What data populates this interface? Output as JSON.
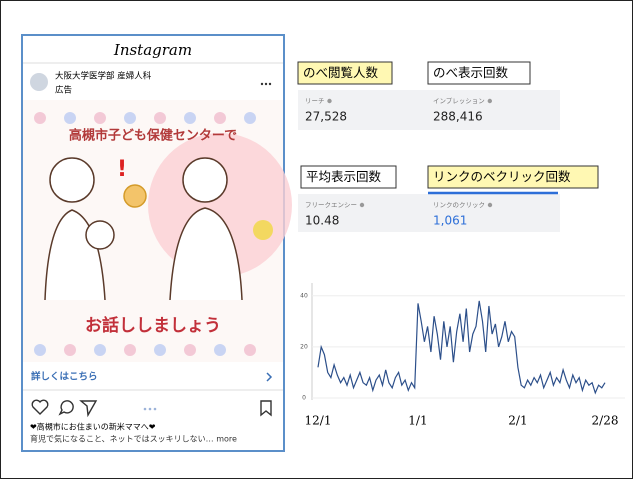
{
  "post": {
    "app": "Instagram",
    "account": "大阪大学医学部 産婦人科",
    "sponsored": "広告",
    "headline": "高槻市子ども保健センターで",
    "tagline": "お話ししましょう",
    "cta": "詳しくはこちら",
    "caption": [
      "❤高槻市にお住まいの新米ママへ❤",
      "育児で気になること、ネットではスッキリしない… more"
    ]
  },
  "metrics": [
    {
      "title": "のべ閲覧人数",
      "label": "リーチ",
      "value": "27,528"
    },
    {
      "title": "のべ表示回数",
      "label": "インプレッション",
      "value": "288,416"
    },
    {
      "title": "平均表示回数",
      "label": "フリークエンシー",
      "value": "10.48"
    },
    {
      "title": "リンクのベクリック回数",
      "label": "リンクのクリック",
      "value": "1,061"
    }
  ],
  "chart_data": {
    "type": "line",
    "categories": [
      "12/1",
      null,
      null,
      null,
      null,
      null,
      null,
      null,
      null,
      null,
      null,
      null,
      null,
      null,
      null,
      null,
      null,
      null,
      null,
      null,
      null,
      null,
      null,
      null,
      null,
      null,
      null,
      null,
      null,
      null,
      null,
      "1/1",
      null,
      null,
      null,
      null,
      null,
      null,
      null,
      null,
      null,
      null,
      null,
      null,
      null,
      null,
      null,
      null,
      null,
      null,
      null,
      null,
      null,
      null,
      null,
      null,
      null,
      null,
      null,
      null,
      null,
      null,
      "2/1",
      null,
      null,
      null,
      null,
      null,
      null,
      null,
      null,
      null,
      null,
      null,
      null,
      null,
      null,
      null,
      null,
      null,
      null,
      null,
      null,
      null,
      null,
      null,
      null,
      null,
      null,
      "2/28"
    ],
    "series": [
      {
        "color": "#2c4f8a",
        "values": [
          12,
          20,
          17,
          10,
          8,
          13,
          9,
          6,
          8,
          5,
          9,
          4,
          7,
          10,
          6,
          5,
          8,
          3,
          7,
          9,
          5,
          11,
          6,
          4,
          8,
          10,
          5,
          7,
          3,
          6,
          4,
          37,
          30,
          22,
          28,
          18,
          32,
          25,
          15,
          30,
          20,
          28,
          14,
          26,
          33,
          22,
          35,
          18,
          25,
          28,
          38,
          30,
          18,
          36,
          25,
          29,
          20,
          24,
          30,
          22,
          26,
          24,
          12,
          5,
          4,
          7,
          5,
          8,
          6,
          9,
          4,
          7,
          10,
          5,
          8,
          6,
          11,
          7,
          4,
          9,
          6,
          8,
          3,
          7,
          5,
          6,
          2,
          5,
          4,
          6
        ]
      }
    ],
    "ylim": [
      0,
      45
    ],
    "yticks": [
      0,
      20,
      40
    ],
    "grid": true
  }
}
